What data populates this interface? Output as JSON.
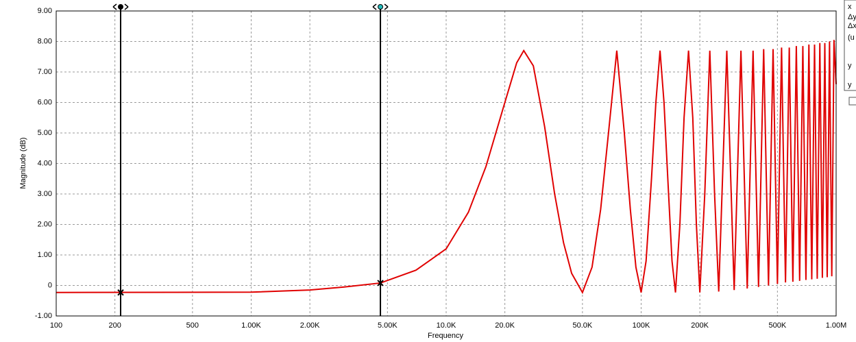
{
  "chart_data": {
    "type": "line",
    "xlabel": "Frequency",
    "ylabel": "Magnitude (dB)",
    "xscale": "log",
    "grid": true,
    "xlim": [
      100,
      1000000
    ],
    "ylim": [
      -1,
      9
    ],
    "xticks": [
      100,
      200,
      500,
      {
        "value": 1000,
        "label": "1.00K"
      },
      {
        "value": 2000,
        "label": "2.00K"
      },
      {
        "value": 5000,
        "label": "5.00K"
      },
      {
        "value": 10000,
        "label": "10.0K"
      },
      {
        "value": 20000,
        "label": "20.0K"
      },
      {
        "value": 50000,
        "label": "50.0K"
      },
      {
        "value": 100000,
        "label": "100K"
      },
      {
        "value": 200000,
        "label": "200K"
      },
      {
        "value": 500000,
        "label": "500K"
      },
      {
        "value": 1000000,
        "label": "1.00M"
      }
    ],
    "yticks": [
      {
        "value": -1,
        "label": "-1.00"
      },
      0,
      {
        "value": 1,
        "label": "1.00"
      },
      {
        "value": 2,
        "label": "2.00"
      },
      {
        "value": 3,
        "label": "3.00"
      },
      {
        "value": 4,
        "label": "4.00"
      },
      {
        "value": 5,
        "label": "5.00"
      },
      {
        "value": 6,
        "label": "6.00"
      },
      {
        "value": 7,
        "label": "7.00"
      },
      {
        "value": 8,
        "label": "8.00"
      },
      {
        "value": 9,
        "label": "9.00"
      }
    ],
    "x": [
      100,
      1000,
      2000,
      3000,
      4600,
      7000,
      10000,
      13000,
      16000,
      20000,
      23000,
      25000,
      28000,
      32000,
      36000,
      40000,
      44000,
      50000,
      56000,
      62000,
      68000,
      75000,
      82000,
      88000,
      94000,
      100000,
      106000,
      113000,
      119000,
      125000,
      131000,
      137000,
      144000,
      150000,
      158000,
      166000,
      175000,
      184000,
      192000,
      200000,
      212000,
      225000,
      238000,
      250000,
      275000,
      300000,
      325000,
      350000,
      375000,
      400000,
      425000,
      450000,
      475000,
      500000,
      525000,
      550000,
      575000,
      600000,
      625000,
      650000,
      675000,
      700000,
      725000,
      750000,
      775000,
      800000,
      825000,
      850000,
      875000,
      900000,
      925000,
      950000,
      975000,
      1000000
    ],
    "series": [
      {
        "color": "#e00000",
        "values": [
          -0.23,
          -0.22,
          -0.15,
          -0.05,
          0.08,
          0.5,
          1.2,
          2.4,
          3.9,
          6.0,
          7.3,
          7.7,
          7.2,
          5.2,
          3.0,
          1.4,
          0.4,
          -0.23,
          0.6,
          2.5,
          5.0,
          7.7,
          5.0,
          2.5,
          0.6,
          -0.23,
          0.8,
          3.5,
          6.0,
          7.7,
          6.0,
          3.5,
          0.8,
          -0.23,
          2.0,
          5.5,
          7.7,
          5.5,
          2.0,
          -0.23,
          3.0,
          7.7,
          3.0,
          -0.2,
          7.7,
          -0.15,
          7.7,
          -0.1,
          7.7,
          -0.05,
          7.75,
          0,
          7.75,
          0.05,
          7.8,
          0.1,
          7.8,
          0.12,
          7.85,
          0.15,
          7.85,
          0.18,
          7.9,
          0.2,
          7.9,
          0.22,
          7.95,
          0.25,
          7.95,
          0.27,
          8.0,
          0.3,
          8.05,
          6.6
        ]
      }
    ],
    "cursors": [
      {
        "x": 214,
        "y": -0.23
      },
      {
        "x": 4600,
        "y": 0.08
      }
    ],
    "side_panel": [
      "x",
      "Δy",
      "Δx",
      "(u",
      "y",
      "y"
    ]
  }
}
